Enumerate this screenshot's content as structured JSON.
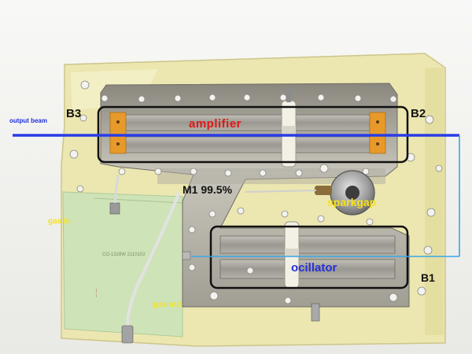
{
  "labels": {
    "output_beam": "output beam",
    "b3": "B3",
    "b2": "B2",
    "amplifier": "amplifier",
    "m1": "M1 99.5%",
    "sparkgap": "sparkgap",
    "gas_in": "gas in",
    "ocillator": "ocillator",
    "b1": "B1",
    "gas_out": "gas out"
  },
  "colors": {
    "beam": "#2a3ce6",
    "label_yellow": "#f6e31a",
    "label_red": "#e01818",
    "label_blue": "#2730d8",
    "outline": "#101010",
    "acrylic": "#ece7b0",
    "metal": "#b9b6ac",
    "electrode": "#9d9b93",
    "orange_pad": "#e79a2a",
    "pcb_green": "#cfe3b8"
  }
}
